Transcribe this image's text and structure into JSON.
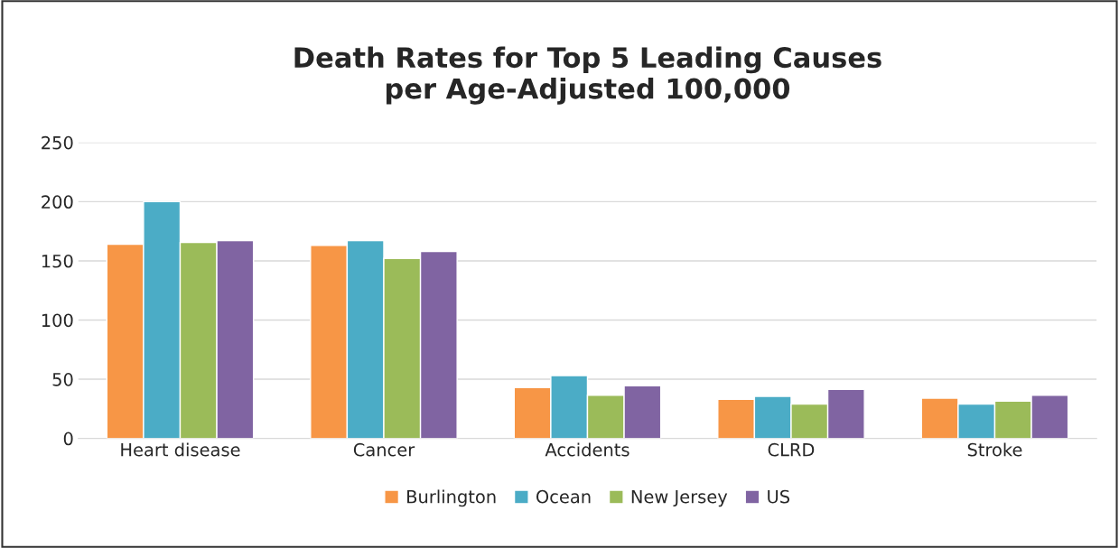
{
  "chart_data": {
    "type": "bar",
    "title": "Death Rates for Top 5 Leading Causes\nper Age-Adjusted 100,000",
    "categories": [
      "Heart disease",
      "Cancer",
      "Accidents",
      "CLRD",
      "Stroke"
    ],
    "series": [
      {
        "name": "Burlington",
        "color": "#f79646",
        "values": [
          164,
          163,
          43,
          33,
          34
        ]
      },
      {
        "name": "Ocean",
        "color": "#4bacc6",
        "values": [
          200,
          167,
          53,
          35.5,
          29
        ]
      },
      {
        "name": "New Jersey",
        "color": "#9bbb59",
        "values": [
          165.5,
          152,
          36.5,
          29,
          31.5
        ]
      },
      {
        "name": "US",
        "color": "#8064a2",
        "values": [
          167,
          158,
          44.5,
          41.5,
          36.5
        ]
      }
    ],
    "ylim": [
      0,
      250
    ],
    "yticks": [
      0,
      50,
      100,
      150,
      200,
      250
    ],
    "grid": "y",
    "legend": "bottom"
  }
}
